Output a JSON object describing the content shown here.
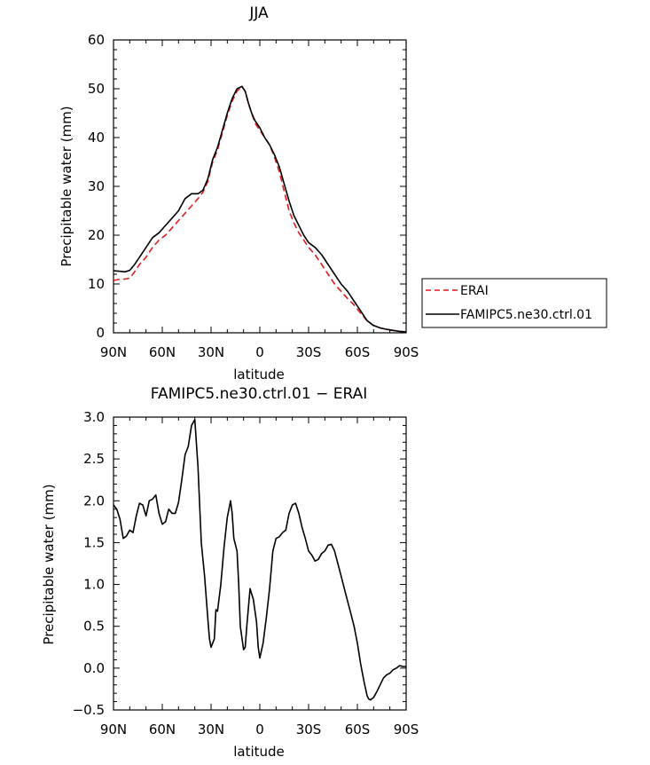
{
  "chart_data": [
    {
      "type": "line",
      "title": "JJA",
      "xlabel": "latitude",
      "ylabel": "Precipitable water (mm)",
      "xlim": [
        90,
        -90
      ],
      "ylim": [
        0,
        60
      ],
      "x_ticks": [
        90,
        60,
        30,
        0,
        -30,
        -60,
        -90
      ],
      "x_tick_labels": [
        "90N",
        "60N",
        "30N",
        "0",
        "30S",
        "60S",
        "90S"
      ],
      "y_ticks": [
        0,
        10,
        20,
        30,
        40,
        50,
        60
      ],
      "y_tick_labels": [
        "0",
        "10",
        "20",
        "30",
        "40",
        "50",
        "60"
      ],
      "legend": "right",
      "series": [
        {
          "name": "ERAI",
          "color": "#e41a1c",
          "dash": "dashed",
          "x": [
            90,
            86,
            83,
            80,
            77,
            74,
            70,
            66,
            62,
            58,
            54,
            50,
            46,
            42,
            38,
            35,
            32,
            29,
            26,
            23,
            20,
            17,
            14,
            11,
            9,
            7,
            5,
            3,
            0,
            -3,
            -6,
            -9,
            -12,
            -15,
            -18,
            -21,
            -24,
            -27,
            -30,
            -34,
            -38,
            -42,
            -46,
            -50,
            -54,
            -58,
            -62,
            -66,
            -70,
            -74,
            -78,
            -82,
            -86,
            -90
          ],
          "values": [
            10.7,
            11.0,
            11.0,
            11.2,
            12.5,
            14.0,
            15.5,
            17.5,
            19.0,
            20.0,
            21.5,
            23.0,
            24.5,
            26.0,
            27.5,
            28.8,
            31.0,
            35.0,
            37.5,
            41.0,
            44.5,
            47.5,
            49.5,
            50.5,
            49.5,
            47.0,
            45.0,
            43.0,
            41.5,
            40.0,
            38.5,
            36.0,
            33.0,
            29.0,
            25.0,
            22.5,
            20.5,
            19.0,
            17.5,
            16.0,
            14.0,
            12.0,
            10.0,
            8.5,
            7.0,
            5.7,
            4.0,
            2.5,
            1.5,
            1.0,
            0.7,
            0.5,
            0.3,
            0.2
          ]
        },
        {
          "name": "FAMIPC5.ne30.ctrl.01",
          "color": "#000000",
          "dash": "solid",
          "x": [
            90,
            86,
            83,
            80,
            77,
            74,
            70,
            66,
            62,
            58,
            54,
            50,
            46,
            42,
            38,
            35,
            32,
            29,
            26,
            23,
            20,
            17,
            14,
            11,
            9,
            7,
            5,
            3,
            0,
            -3,
            -6,
            -9,
            -12,
            -15,
            -18,
            -21,
            -24,
            -27,
            -30,
            -34,
            -38,
            -42,
            -46,
            -50,
            -54,
            -58,
            -62,
            -66,
            -70,
            -74,
            -78,
            -82,
            -86,
            -90
          ],
          "values": [
            12.7,
            12.6,
            12.5,
            12.8,
            14.0,
            15.5,
            17.5,
            19.5,
            20.5,
            22.0,
            23.5,
            25.0,
            27.5,
            28.5,
            28.5,
            29.2,
            31.5,
            35.5,
            38.0,
            41.5,
            45.0,
            48.0,
            50.0,
            50.5,
            49.5,
            47.0,
            45.0,
            43.5,
            42.0,
            40.0,
            38.5,
            36.5,
            34.0,
            30.5,
            27.0,
            24.0,
            22.0,
            20.0,
            18.5,
            17.5,
            16.0,
            14.0,
            12.0,
            10.0,
            8.5,
            6.5,
            4.5,
            2.5,
            1.5,
            1.0,
            0.7,
            0.5,
            0.3,
            0.2
          ]
        }
      ]
    },
    {
      "type": "line",
      "title": "FAMIPC5.ne30.ctrl.01 − ERAI",
      "xlabel": "latitude",
      "ylabel": "Precipitable water (mm)",
      "xlim": [
        90,
        -90
      ],
      "ylim": [
        -0.5,
        3.0
      ],
      "x_ticks": [
        90,
        60,
        30,
        0,
        -30,
        -60,
        -90
      ],
      "x_tick_labels": [
        "90N",
        "60N",
        "30N",
        "0",
        "30S",
        "60S",
        "90S"
      ],
      "y_ticks": [
        -0.5,
        0.0,
        0.5,
        1.0,
        1.5,
        2.0,
        2.5,
        3.0
      ],
      "y_tick_labels": [
        "−0.5",
        "0.0",
        "0.5",
        "1.0",
        "1.5",
        "2.0",
        "2.5",
        "3.0"
      ],
      "series": [
        {
          "color": "#000000",
          "x": [
            90,
            88,
            86,
            84,
            82,
            80,
            78,
            76,
            74,
            72,
            70,
            68,
            66,
            64,
            62,
            60,
            58,
            56,
            54,
            52,
            50,
            48,
            46,
            44,
            42,
            40,
            38,
            36,
            34,
            32,
            31,
            30,
            28,
            27,
            26,
            24,
            22,
            20,
            18,
            17,
            16,
            14,
            13,
            12,
            10,
            9,
            8,
            6,
            4,
            2,
            1,
            0,
            -2,
            -4,
            -6,
            -8,
            -10,
            -12,
            -14,
            -16,
            -18,
            -20,
            -22,
            -24,
            -26,
            -28,
            -30,
            -32,
            -34,
            -36,
            -38,
            -40,
            -42,
            -44,
            -46,
            -48,
            -50,
            -52,
            -54,
            -56,
            -58,
            -60,
            -62,
            -64,
            -66,
            -67,
            -68,
            -70,
            -72,
            -74,
            -76,
            -78,
            -80,
            -82,
            -84,
            -86,
            -88,
            -90
          ],
          "values": [
            1.95,
            1.9,
            1.78,
            1.55,
            1.58,
            1.65,
            1.62,
            1.82,
            1.97,
            1.95,
            1.82,
            2.0,
            2.02,
            2.07,
            1.85,
            1.72,
            1.75,
            1.9,
            1.85,
            1.85,
            1.98,
            2.25,
            2.55,
            2.65,
            2.9,
            2.97,
            2.4,
            1.5,
            1.1,
            0.6,
            0.35,
            0.25,
            0.35,
            0.7,
            0.68,
            1.0,
            1.45,
            1.8,
            2.0,
            1.85,
            1.55,
            1.4,
            1.0,
            0.5,
            0.22,
            0.25,
            0.5,
            0.95,
            0.82,
            0.55,
            0.25,
            0.12,
            0.3,
            0.6,
            0.95,
            1.4,
            1.55,
            1.57,
            1.62,
            1.65,
            1.85,
            1.95,
            1.97,
            1.85,
            1.68,
            1.55,
            1.4,
            1.35,
            1.28,
            1.3,
            1.37,
            1.4,
            1.47,
            1.48,
            1.4,
            1.25,
            1.1,
            0.95,
            0.8,
            0.65,
            0.5,
            0.3,
            0.05,
            -0.15,
            -0.33,
            -0.37,
            -0.38,
            -0.35,
            -0.28,
            -0.2,
            -0.12,
            -0.08,
            -0.06,
            -0.02,
            0.0,
            0.03,
            0.02,
            0.02
          ]
        }
      ]
    }
  ]
}
